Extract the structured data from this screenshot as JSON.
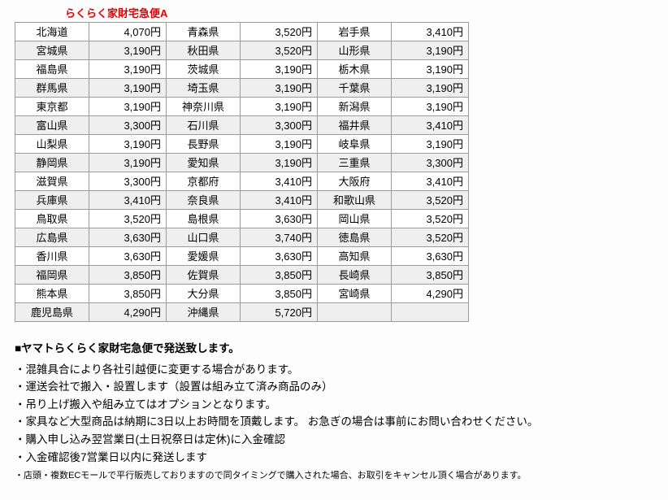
{
  "title": "らくらく家財宅急便A",
  "table": {
    "rows": [
      {
        "shade": false,
        "cells": [
          "北海道",
          "4,070円",
          "青森県",
          "3,520円",
          "岩手県",
          "3,410円"
        ]
      },
      {
        "shade": true,
        "cells": [
          "宮城県",
          "3,190円",
          "秋田県",
          "3,520円",
          "山形県",
          "3,190円"
        ]
      },
      {
        "shade": false,
        "cells": [
          "福島県",
          "3,190円",
          "茨城県",
          "3,190円",
          "栃木県",
          "3,190円"
        ]
      },
      {
        "shade": true,
        "cells": [
          "群馬県",
          "3,190円",
          "埼玉県",
          "3,190円",
          "千葉県",
          "3,190円"
        ]
      },
      {
        "shade": false,
        "cells": [
          "東京都",
          "3,190円",
          "神奈川県",
          "3,190円",
          "新潟県",
          "3,190円"
        ]
      },
      {
        "shade": true,
        "cells": [
          "富山県",
          "3,300円",
          "石川県",
          "3,300円",
          "福井県",
          "3,410円"
        ]
      },
      {
        "shade": false,
        "cells": [
          "山梨県",
          "3,190円",
          "長野県",
          "3,190円",
          "岐阜県",
          "3,190円"
        ]
      },
      {
        "shade": true,
        "cells": [
          "静岡県",
          "3,190円",
          "愛知県",
          "3,190円",
          "三重県",
          "3,300円"
        ]
      },
      {
        "shade": false,
        "cells": [
          "滋賀県",
          "3,300円",
          "京都府",
          "3,410円",
          "大阪府",
          "3,410円"
        ]
      },
      {
        "shade": true,
        "cells": [
          "兵庫県",
          "3,410円",
          "奈良県",
          "3,410円",
          "和歌山県",
          "3,520円"
        ]
      },
      {
        "shade": false,
        "cells": [
          "鳥取県",
          "3,520円",
          "島根県",
          "3,630円",
          "岡山県",
          "3,520円"
        ]
      },
      {
        "shade": true,
        "cells": [
          "広島県",
          "3,630円",
          "山口県",
          "3,740円",
          "徳島県",
          "3,520円"
        ]
      },
      {
        "shade": false,
        "cells": [
          "香川県",
          "3,630円",
          "愛媛県",
          "3,630円",
          "高知県",
          "3,630円"
        ]
      },
      {
        "shade": true,
        "cells": [
          "福岡県",
          "3,850円",
          "佐賀県",
          "3,850円",
          "長崎県",
          "3,850円"
        ]
      },
      {
        "shade": false,
        "cells": [
          "熊本県",
          "3,850円",
          "大分県",
          "3,850円",
          "宮崎県",
          "4,290円"
        ]
      },
      {
        "shade": true,
        "cells": [
          "鹿児島県",
          "4,290円",
          "沖縄県",
          "5,720円",
          "",
          ""
        ]
      }
    ]
  },
  "notes": {
    "head": "■ヤマトらくらく家財宅急便で発送致します。",
    "lines": [
      "・混雑具合により各社引越便に変更する場合があります。",
      "・運送会社で搬入・設置します（設置は組み立て済み商品のみ）",
      "・吊り上げ搬入や組み立てはオプションとなります。",
      "・家具など大型商品は納期に3日以上お時間を頂戴します。 お急ぎの場合は事前にお問い合わせください。",
      "・購入申し込み翌営業日(土日祝祭日は定休)に入金確認",
      "・入金確認後7営業日以内に発送します"
    ],
    "small": "・店頭・複数ECモールで平行販売しておりますので同タイミングで購入された場合、お取引をキャンセル頂く場合があります。"
  }
}
